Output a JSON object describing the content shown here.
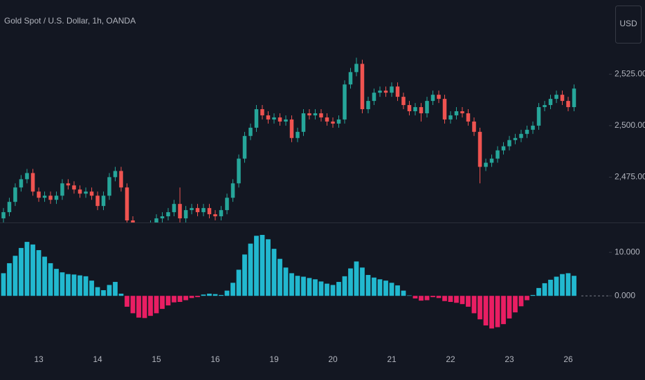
{
  "chart_data": [
    {
      "type": "candlestick",
      "title": "Gold Spot / U.S. Dollar, 1h, OANDA",
      "up_color": "#26a69a",
      "down_color": "#ef5350",
      "ylim": [
        2453,
        2561
      ],
      "yticks": [
        {
          "value": 2475,
          "label": "2,475.000"
        },
        {
          "value": 2500,
          "label": "2,500.000"
        },
        {
          "value": 2525,
          "label": "2,525.000"
        }
      ],
      "open": [
        2455,
        2458,
        2463,
        2470,
        2474,
        2477,
        2468,
        2465,
        2466,
        2464,
        2466,
        2472,
        2471,
        2469,
        2467,
        2468,
        2466,
        2461,
        2466,
        2475,
        2478,
        2470,
        2454,
        2451,
        2450,
        2451,
        2452,
        2455,
        2456,
        2458,
        2462,
        2455,
        2459,
        2460,
        2458,
        2460,
        2457,
        2456,
        2459,
        2465,
        2472,
        2484,
        2495,
        2499,
        2508,
        2505,
        2503,
        2504,
        2502,
        2503,
        2494,
        2497,
        2506,
        2505,
        2506,
        2504,
        2502,
        2501,
        2503,
        2520,
        2526,
        2530,
        2508,
        2512,
        2516,
        2517,
        2516,
        2519,
        2514,
        2510,
        2507,
        2509,
        2506,
        2512,
        2515,
        2513,
        2503,
        2505,
        2507,
        2506,
        2502,
        2497,
        2480,
        2482,
        2484,
        2488,
        2490,
        2493,
        2494,
        2496,
        2498,
        2500,
        2509,
        2510,
        2513,
        2515,
        2512,
        2509
      ],
      "high": [
        2460,
        2465,
        2472,
        2476,
        2479,
        2479,
        2470,
        2468,
        2468,
        2468,
        2474,
        2474,
        2473,
        2471,
        2470,
        2470,
        2468,
        2468,
        2477,
        2480,
        2480,
        2472,
        2456,
        2453,
        2453,
        2454,
        2457,
        2458,
        2460,
        2464,
        2470,
        2461,
        2462,
        2462,
        2462,
        2462,
        2459,
        2461,
        2467,
        2474,
        2486,
        2497,
        2501,
        2510,
        2510,
        2507,
        2506,
        2506,
        2505,
        2505,
        2499,
        2508,
        2508,
        2508,
        2508,
        2506,
        2504,
        2505,
        2522,
        2528,
        2533,
        2532,
        2514,
        2518,
        2519,
        2519,
        2521,
        2521,
        2516,
        2512,
        2511,
        2511,
        2514,
        2517,
        2517,
        2515,
        2507,
        2509,
        2509,
        2508,
        2504,
        2499,
        2484,
        2486,
        2490,
        2492,
        2495,
        2496,
        2498,
        2500,
        2502,
        2511,
        2512,
        2515,
        2517,
        2517,
        2514,
        2520
      ],
      "low": [
        2453,
        2456,
        2461,
        2468,
        2472,
        2466,
        2463,
        2463,
        2462,
        2462,
        2464,
        2469,
        2467,
        2465,
        2465,
        2464,
        2459,
        2459,
        2464,
        2473,
        2468,
        2452,
        2449,
        2448,
        2448,
        2449,
        2450,
        2453,
        2454,
        2456,
        2453,
        2453,
        2457,
        2456,
        2456,
        2455,
        2454,
        2454,
        2457,
        2463,
        2470,
        2482,
        2493,
        2497,
        2503,
        2501,
        2501,
        2500,
        2500,
        2492,
        2492,
        2495,
        2503,
        2503,
        2502,
        2500,
        2499,
        2499,
        2501,
        2518,
        2524,
        2506,
        2506,
        2510,
        2514,
        2514,
        2514,
        2512,
        2508,
        2505,
        2505,
        2502,
        2504,
        2510,
        2511,
        2501,
        2501,
        2503,
        2504,
        2500,
        2495,
        2472,
        2478,
        2480,
        2482,
        2486,
        2488,
        2491,
        2492,
        2494,
        2496,
        2498,
        2507,
        2508,
        2511,
        2510,
        2507,
        2507
      ],
      "close": [
        2458,
        2463,
        2470,
        2474,
        2477,
        2468,
        2465,
        2466,
        2464,
        2466,
        2472,
        2471,
        2469,
        2467,
        2468,
        2466,
        2461,
        2466,
        2475,
        2478,
        2470,
        2454,
        2451,
        2450,
        2451,
        2452,
        2455,
        2456,
        2458,
        2462,
        2455,
        2459,
        2460,
        2458,
        2460,
        2457,
        2456,
        2459,
        2465,
        2472,
        2484,
        2495,
        2499,
        2508,
        2505,
        2503,
        2504,
        2502,
        2503,
        2494,
        2497,
        2506,
        2505,
        2506,
        2504,
        2502,
        2501,
        2503,
        2520,
        2526,
        2530,
        2508,
        2512,
        2516,
        2517,
        2516,
        2519,
        2514,
        2510,
        2507,
        2509,
        2506,
        2512,
        2515,
        2513,
        2503,
        2505,
        2507,
        2506,
        2502,
        2497,
        2480,
        2482,
        2484,
        2488,
        2490,
        2493,
        2494,
        2496,
        2498,
        2500,
        2509,
        2510,
        2513,
        2515,
        2512,
        2509,
        2518
      ]
    },
    {
      "type": "bar",
      "positive_color": "#22b8cf",
      "negative_color": "#e91e63",
      "ylim": [
        -11.4,
        16.7
      ],
      "yticks": [
        {
          "value": 0,
          "label": "0.000"
        },
        {
          "value": 10,
          "label": "10.000"
        }
      ],
      "categories": [
        null,
        null,
        null,
        null,
        null,
        null,
        "13",
        null,
        null,
        null,
        null,
        null,
        null,
        null,
        null,
        null,
        "14",
        null,
        null,
        null,
        null,
        null,
        null,
        null,
        null,
        null,
        "15",
        null,
        null,
        null,
        null,
        null,
        null,
        null,
        null,
        null,
        "16",
        null,
        null,
        null,
        null,
        null,
        null,
        null,
        null,
        null,
        "19",
        null,
        null,
        null,
        null,
        null,
        null,
        null,
        null,
        null,
        "20",
        null,
        null,
        null,
        null,
        null,
        null,
        null,
        null,
        null,
        "21",
        null,
        null,
        null,
        null,
        null,
        null,
        null,
        null,
        null,
        "22",
        null,
        null,
        null,
        null,
        null,
        null,
        null,
        null,
        null,
        "23",
        null,
        null,
        null,
        null,
        null,
        null,
        null,
        null,
        null,
        "26",
        null
      ],
      "values": [
        5.2,
        7.5,
        9.2,
        11,
        12.4,
        11.8,
        10.5,
        9,
        7.5,
        6.2,
        5.4,
        5,
        4.9,
        4.7,
        4.5,
        3.5,
        2,
        1.3,
        2.5,
        3.2,
        0.5,
        -2.5,
        -4,
        -5,
        -5.1,
        -4.6,
        -4,
        -3,
        -2.2,
        -1.5,
        -1.4,
        -1,
        -0.5,
        -0.3,
        0.3,
        0.5,
        0.4,
        0.2,
        1.2,
        3,
        6,
        9.5,
        12,
        13.8,
        14,
        13,
        10.8,
        8.5,
        6.5,
        5.2,
        4.6,
        4.4,
        4.1,
        3.8,
        3.3,
        2.8,
        2.5,
        3.2,
        4.5,
        6.3,
        7.9,
        6.5,
        4.8,
        4.2,
        3.8,
        3.5,
        3,
        2.4,
        1.2,
        0.1,
        -0.6,
        -1.1,
        -1,
        -0.3,
        -0.5,
        -1.2,
        -1.4,
        -1.6,
        -1.9,
        -2.5,
        -4,
        -5.4,
        -6.8,
        -7.5,
        -7.2,
        -6.5,
        -5.2,
        -3.8,
        -2.4,
        -1,
        0.2,
        1.8,
        2.9,
        3.7,
        4.4,
        5,
        5.2,
        4.6
      ]
    }
  ],
  "ui": {
    "currency": "USD"
  }
}
